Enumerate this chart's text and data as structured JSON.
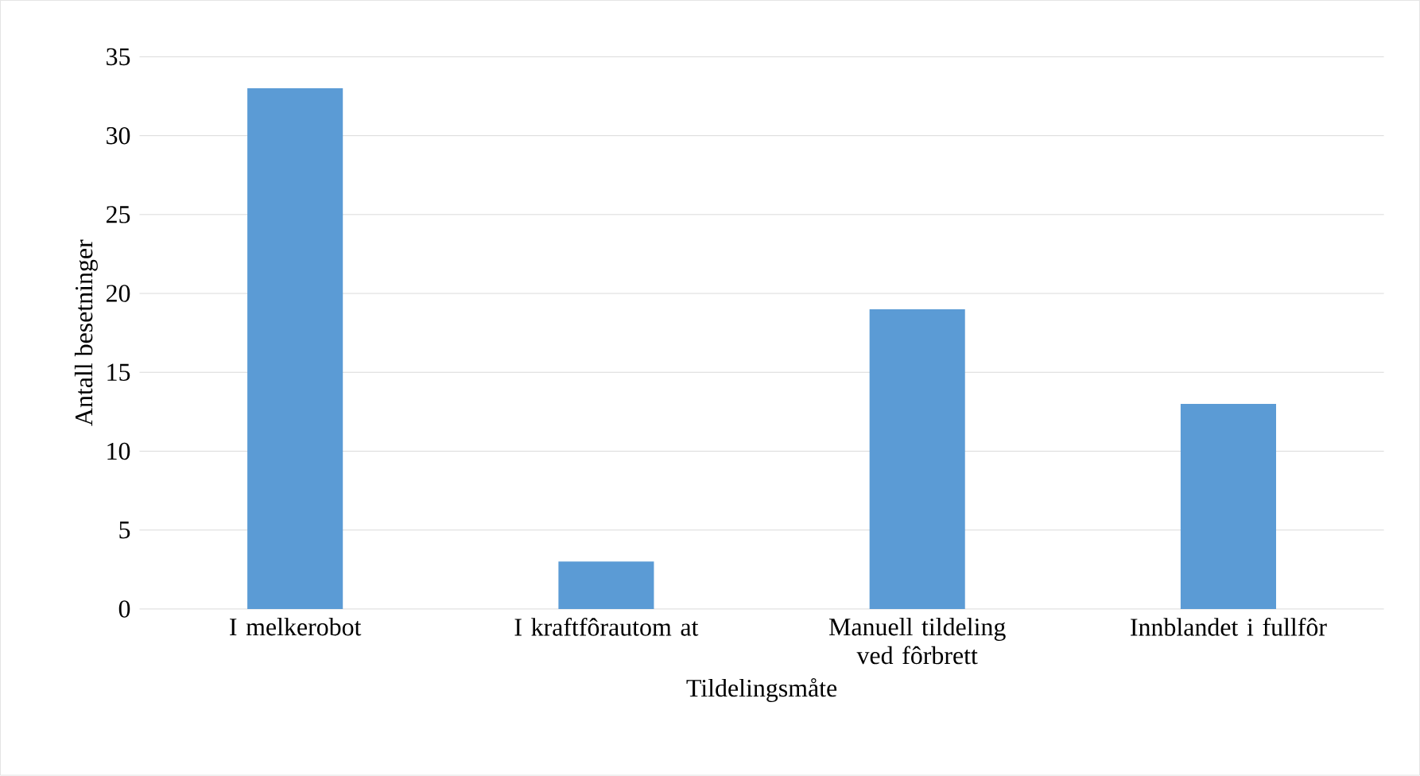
{
  "chart_data": {
    "type": "bar",
    "xlabel": "Tildelingsmåte",
    "ylabel": "Antall besetninger",
    "categories": [
      "I melkerobot",
      "I kraftfôrautom at",
      "Manuell tildeling ved fôrbrett",
      "Innblandet i fullfôr"
    ],
    "values": [
      33,
      3,
      19,
      13
    ],
    "color": "#5b9bd5",
    "ylim": [
      0,
      35
    ],
    "yticks": [
      0,
      5,
      10,
      15,
      20,
      25,
      30,
      35
    ],
    "grid": "y"
  }
}
